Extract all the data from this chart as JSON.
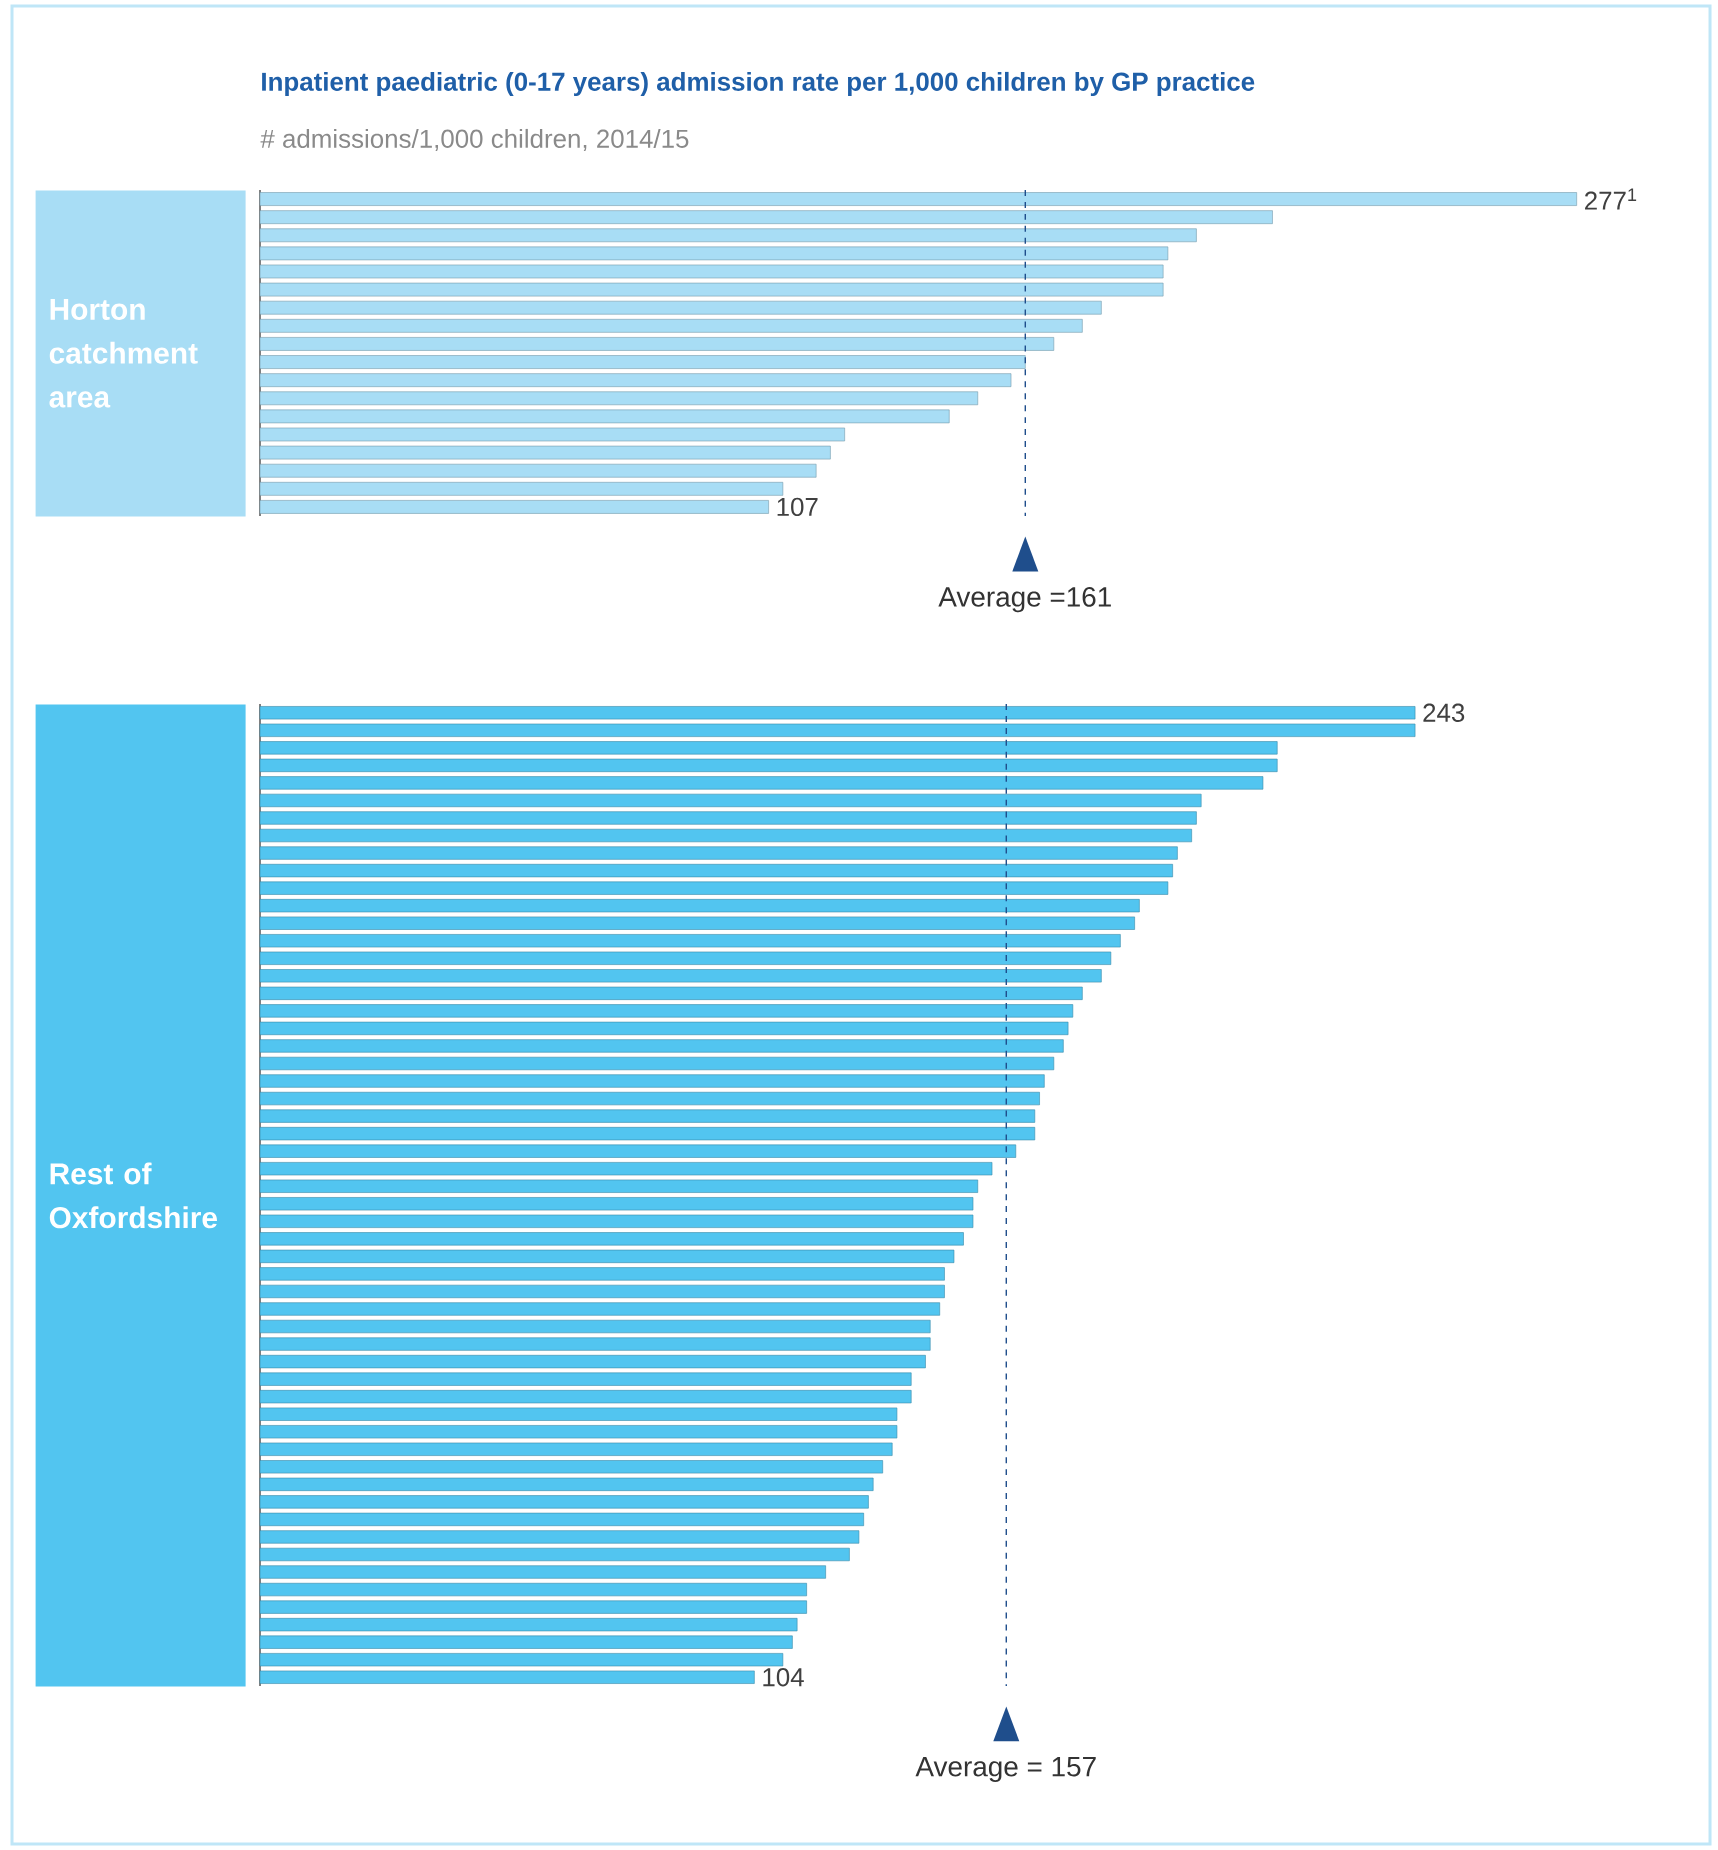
{
  "chart_data": [
    {
      "type": "bar",
      "orientation": "horizontal",
      "title": "Inpatient paediatric (0-17 years) admission rate per 1,000 children by GP practice",
      "subtitle": "# admissions/1,000 children, 2014/15",
      "ylabel": "Horton catchment area",
      "color": "#a8ddf5",
      "categories": [
        null,
        null,
        null,
        null,
        null,
        null,
        null,
        null,
        null,
        null,
        null,
        null,
        null,
        null,
        null,
        null,
        null,
        null
      ],
      "values": [
        277,
        213,
        197,
        191,
        190,
        190,
        177,
        173,
        167,
        161,
        158,
        151,
        145,
        123,
        120,
        117,
        110,
        107
      ],
      "value_labels": [
        "277$^{1}$",
        null,
        null,
        null,
        null,
        null,
        null,
        null,
        null,
        null,
        null,
        null,
        null,
        null,
        null,
        null,
        null,
        "107"
      ],
      "tick_labels": false,
      "ref_lines": [
        {
          "axis": "x",
          "value": 161,
          "label": "Average =161",
          "color": "#1f4e8c",
          "line_style": "dashed"
        }
      ]
    },
    {
      "type": "bar",
      "orientation": "horizontal",
      "ylabel": "Rest of Oxfordshire",
      "color": "#52c5f0",
      "categories": [
        null,
        null,
        null,
        null,
        null,
        null,
        null,
        null,
        null,
        null,
        null,
        null,
        null,
        null,
        null,
        null,
        null,
        null,
        null,
        null,
        null,
        null,
        null,
        null,
        null,
        null,
        null,
        null,
        null,
        null,
        null,
        null,
        null,
        null,
        null,
        null,
        null,
        null,
        null,
        null,
        null,
        null,
        null,
        null,
        null,
        null,
        null,
        null,
        null,
        null,
        null,
        null,
        null,
        null,
        null,
        null
      ],
      "values": [
        243,
        243,
        214,
        214,
        211,
        198,
        197,
        196,
        193,
        192,
        191,
        185,
        184,
        181,
        179,
        177,
        173,
        171,
        170,
        169,
        167,
        165,
        164,
        163,
        163,
        159,
        154,
        151,
        150,
        150,
        148,
        146,
        144,
        144,
        143,
        141,
        141,
        140,
        137,
        137,
        134,
        134,
        133,
        131,
        129,
        128,
        127,
        126,
        124,
        119,
        115,
        115,
        113,
        112,
        110,
        104
      ],
      "value_labels": [
        "243",
        null,
        null,
        null,
        null,
        null,
        null,
        null,
        null,
        null,
        null,
        null,
        null,
        null,
        null,
        null,
        null,
        null,
        null,
        null,
        null,
        null,
        null,
        null,
        null,
        null,
        null,
        null,
        null,
        null,
        null,
        null,
        null,
        null,
        null,
        null,
        null,
        null,
        null,
        null,
        null,
        null,
        null,
        null,
        null,
        null,
        null,
        null,
        null,
        null,
        null,
        null,
        null,
        null,
        null,
        "104"
      ],
      "tick_labels": false,
      "ref_lines": [
        {
          "axis": "x",
          "value": 157,
          "label": "Average = 157",
          "color": "#1f4e8c",
          "line_style": "dashed"
        }
      ]
    }
  ]
}
